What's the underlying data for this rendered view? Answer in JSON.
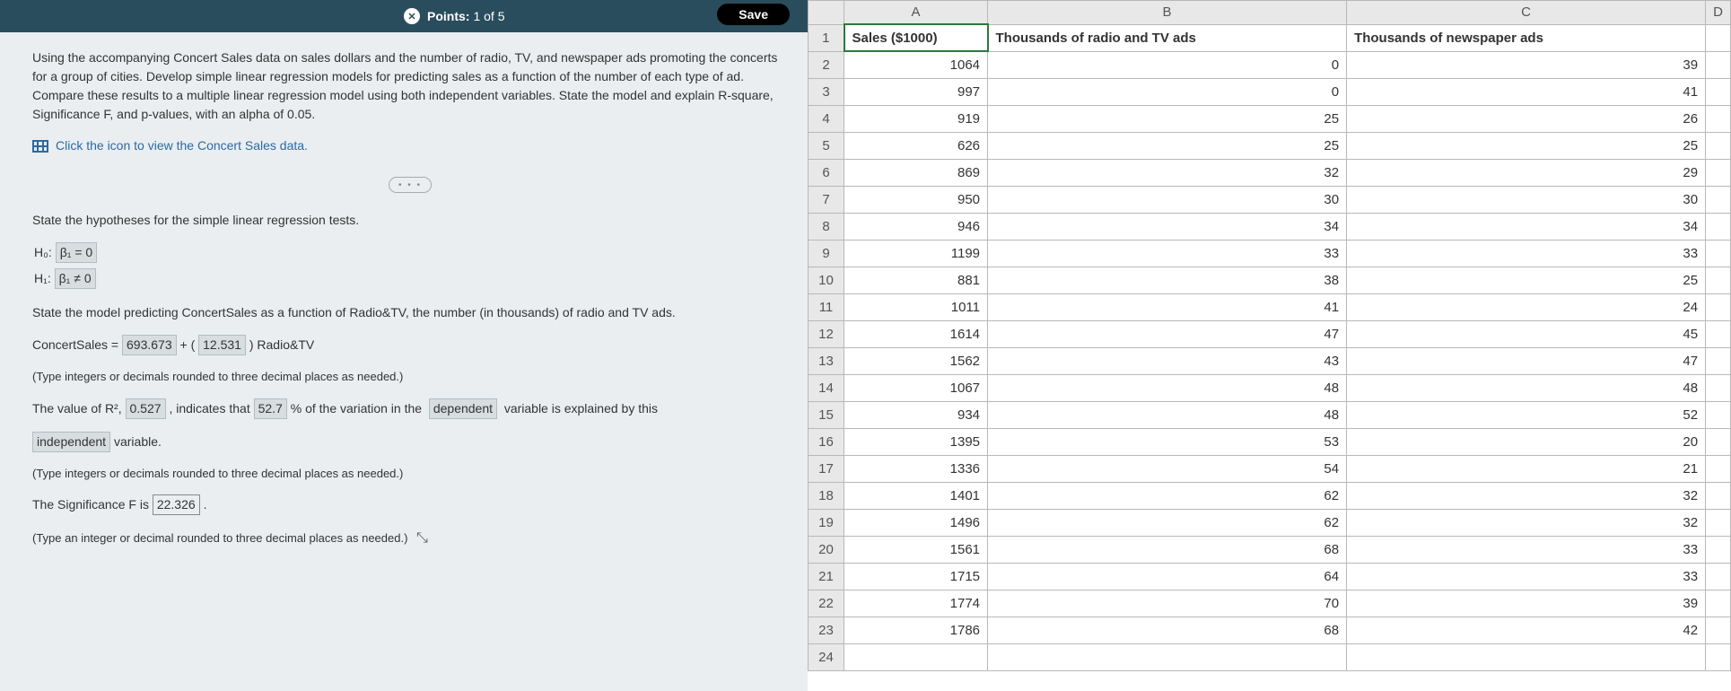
{
  "topbar": {
    "points_label": "Points:",
    "points_value": "1 of 5",
    "save_label": "Save"
  },
  "problem": {
    "text": "Using the accompanying Concert Sales data on sales dollars and the number of radio, TV, and newspaper ads promoting the concerts for a group of cities. Develop simple linear regression models for predicting sales as a function of the number of each type of ad. Compare these results to a multiple linear regression model using both independent variables. State the model and explain R-square, Significance F, and p-values, with an alpha of 0.05.",
    "data_link": "Click the icon to view the Concert Sales data."
  },
  "q": {
    "hypotheses_prompt": "State the hypotheses for the simple linear regression tests.",
    "h0_label": "H₀:",
    "h0_ans": "β₁ = 0",
    "h1_label": "H₁:",
    "h1_ans": "β₁ ≠ 0",
    "model_prompt": "State the model predicting ConcertSales as a function of Radio&TV, the number (in thousands) of radio and TV ads.",
    "model_lhs": "ConcertSales =",
    "model_intercept": "693.673",
    "model_plus": " + (",
    "model_slope": "12.531",
    "model_rhs": ") Radio&TV",
    "note_3dp": "(Type integers or decimals rounded to three decimal places as needed.)",
    "r2_pre": "The value of R²,",
    "r2_val": "0.527",
    "r2_mid1": ", indicates that",
    "r2_pct": "52.7",
    "r2_mid2": "% of the variation in the",
    "r2_dep": "dependent",
    "r2_mid3": "variable is explained by this",
    "r2_indep": "independent",
    "r2_end": "variable.",
    "sigF_pre": "The Significance F is",
    "sigF_val": "22.326",
    "sigF_end": ".",
    "note_1dp": "(Type an integer or decimal rounded to three decimal places as needed.)"
  },
  "sheet": {
    "col_letters": [
      "",
      "A",
      "B",
      "C",
      "D"
    ],
    "headers": [
      "Sales ($1000)",
      "Thousands of radio and TV ads",
      "Thousands of newspaper ads"
    ],
    "rows": [
      [
        1064,
        0,
        39
      ],
      [
        997,
        0,
        41
      ],
      [
        919,
        25,
        26
      ],
      [
        626,
        25,
        25
      ],
      [
        869,
        32,
        29
      ],
      [
        950,
        30,
        30
      ],
      [
        946,
        34,
        34
      ],
      [
        1199,
        33,
        33
      ],
      [
        881,
        38,
        25
      ],
      [
        1011,
        41,
        24
      ],
      [
        1614,
        47,
        45
      ],
      [
        1562,
        43,
        47
      ],
      [
        1067,
        48,
        48
      ],
      [
        934,
        48,
        52
      ],
      [
        1395,
        53,
        20
      ],
      [
        1336,
        54,
        21
      ],
      [
        1401,
        62,
        32
      ],
      [
        1496,
        62,
        32
      ],
      [
        1561,
        68,
        33
      ],
      [
        1715,
        64,
        33
      ],
      [
        1774,
        70,
        39
      ],
      [
        1786,
        68,
        42
      ]
    ]
  }
}
